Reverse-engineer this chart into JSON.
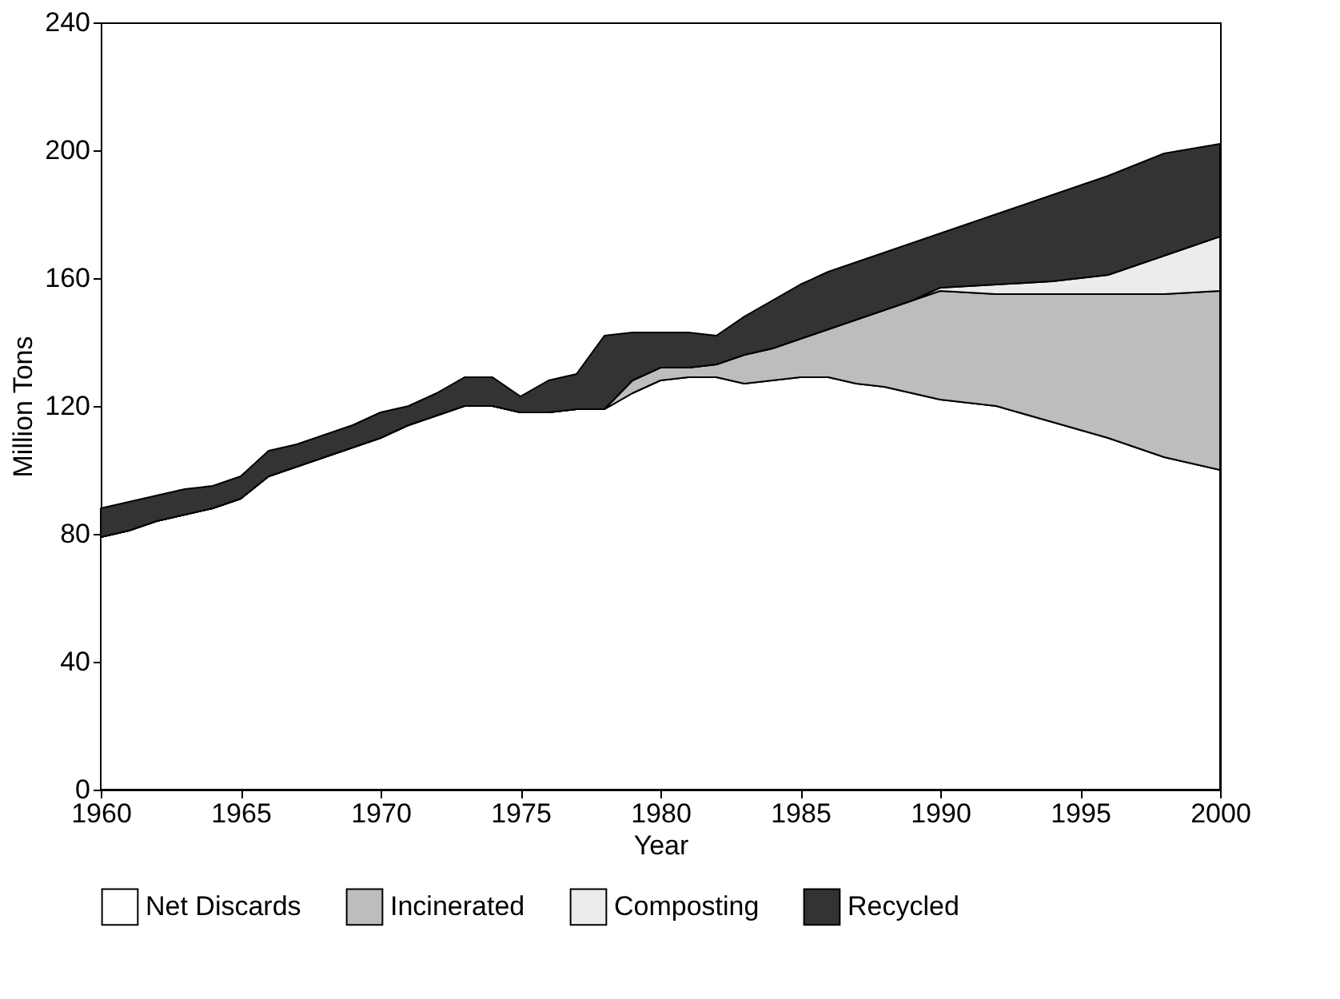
{
  "chart_data": {
    "type": "area",
    "stacked": true,
    "xlabel": "Year",
    "ylabel": "Million Tons",
    "x": [
      1960,
      1961,
      1962,
      1963,
      1964,
      1965,
      1966,
      1967,
      1968,
      1969,
      1970,
      1971,
      1972,
      1973,
      1974,
      1975,
      1976,
      1977,
      1978,
      1979,
      1980,
      1981,
      1982,
      1983,
      1984,
      1985,
      1986,
      1987,
      1988,
      1989,
      1990,
      1992,
      1994,
      1996,
      1998,
      2000
    ],
    "series": [
      {
        "name": "Net Discards",
        "color": "#ffffff",
        "values": [
          79,
          81,
          84,
          86,
          88,
          91,
          98,
          101,
          104,
          107,
          110,
          114,
          117,
          120,
          120,
          118,
          118,
          119,
          119,
          124,
          128,
          129,
          129,
          127,
          128,
          129,
          129,
          127,
          126,
          124,
          122,
          120,
          115,
          110,
          104,
          100
        ]
      },
      {
        "name": "Incinerated",
        "color": "#bdbdbd",
        "values": [
          0,
          0,
          0,
          0,
          0,
          0,
          0,
          0,
          0,
          0,
          0,
          0,
          0,
          0,
          0,
          0,
          0,
          0,
          0,
          4,
          4,
          3,
          4,
          9,
          10,
          12,
          15,
          20,
          24,
          29,
          34,
          35,
          40,
          45,
          51,
          56
        ]
      },
      {
        "name": "Composting",
        "color": "#ececec",
        "values": [
          0,
          0,
          0,
          0,
          0,
          0,
          0,
          0,
          0,
          0,
          0,
          0,
          0,
          0,
          0,
          0,
          0,
          0,
          0,
          0,
          0,
          0,
          0,
          0,
          0,
          0,
          0,
          0,
          0,
          0,
          1,
          3,
          4,
          6,
          12,
          17
        ]
      },
      {
        "name": "Recycled",
        "color": "#333333",
        "values": [
          9,
          9,
          8,
          8,
          7,
          7,
          8,
          7,
          7,
          7,
          8,
          6,
          7,
          9,
          9,
          5,
          10,
          11,
          23,
          15,
          11,
          11,
          9,
          12,
          15,
          17,
          18,
          18,
          18,
          18,
          17,
          22,
          27,
          31,
          32,
          29
        ]
      }
    ],
    "xlim": [
      1960,
      2000
    ],
    "xticks": [
      1960,
      1965,
      1970,
      1975,
      1980,
      1985,
      1990,
      1995,
      2000
    ],
    "ylim": [
      0,
      240
    ],
    "yticks": [
      0,
      40,
      80,
      120,
      160,
      200,
      240
    ],
    "grid": false,
    "legend": "bottom"
  }
}
